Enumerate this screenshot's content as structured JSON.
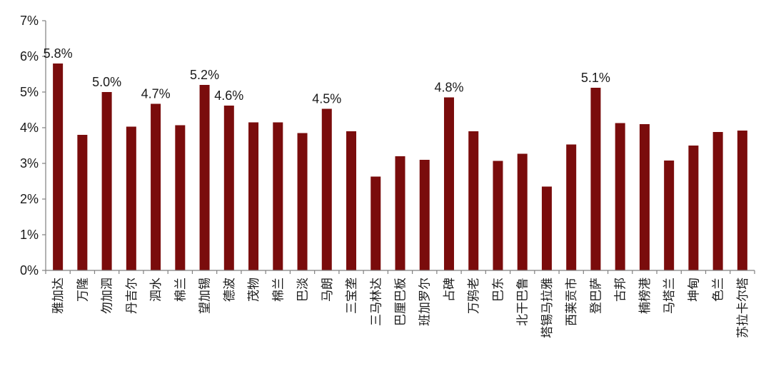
{
  "chart_data": {
    "type": "bar",
    "title": "",
    "xlabel": "",
    "ylabel": "",
    "ylim": [
      0,
      7
    ],
    "yticks": [
      "0%",
      "1%",
      "2%",
      "3%",
      "4%",
      "5%",
      "6%",
      "7%"
    ],
    "grid": false,
    "legend": "none",
    "bar_color": "#7a0c0c",
    "categories": [
      "雅加达",
      "万隆",
      "勿加泗",
      "丹吉尔",
      "泗水",
      "棉兰",
      "望加锡",
      "德波",
      "茂物",
      "棉兰",
      "巴淡",
      "马朗",
      "三宝垄",
      "三马林达",
      "巴厘巴板",
      "班加罗尔",
      "占碑",
      "万鸦老",
      "巴东",
      "北干巴鲁",
      "塔锡马拉雅",
      "西莱贡市",
      "登巴萨",
      "古邦",
      "楠榜港",
      "马塔兰",
      "坤甸",
      "色兰",
      "苏拉卡尔塔"
    ],
    "values": [
      5.8,
      3.8,
      5.0,
      4.03,
      4.67,
      4.07,
      5.2,
      4.62,
      4.15,
      4.15,
      3.85,
      4.53,
      3.9,
      2.63,
      3.2,
      3.1,
      4.85,
      3.9,
      3.07,
      3.27,
      2.35,
      3.53,
      5.12,
      4.13,
      4.1,
      3.08,
      3.5,
      3.88,
      3.92
    ],
    "data_labels": [
      "5.8%",
      "",
      "5.0%",
      "",
      "4.7%",
      "",
      "5.2%",
      "4.6%",
      "",
      "",
      "",
      "4.5%",
      "",
      "",
      "",
      "",
      "4.8%",
      "",
      "",
      "",
      "",
      "",
      "5.1%",
      "",
      "",
      "",
      "",
      "",
      ""
    ]
  }
}
